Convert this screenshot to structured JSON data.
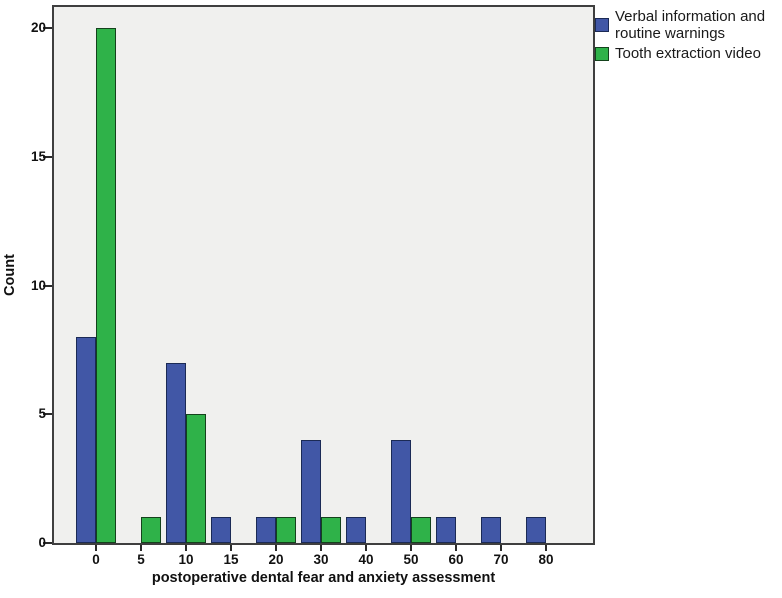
{
  "chart_data": {
    "type": "bar",
    "subtype": "clustered",
    "title": "",
    "xlabel": "postoperative dental fear and anxiety assessment",
    "ylabel": "Count",
    "categories": [
      "0",
      "5",
      "10",
      "15",
      "20",
      "30",
      "40",
      "50",
      "60",
      "70",
      "80"
    ],
    "series": [
      {
        "name": "Verbal information and routine warnings",
        "color": "#4157a6",
        "border_color": "#1b2a55",
        "values": [
          8,
          0,
          7,
          1,
          1,
          4,
          1,
          4,
          1,
          1,
          1
        ]
      },
      {
        "name": "Tooth extraction video",
        "color": "#2fb249",
        "border_color": "#14421c",
        "values": [
          20,
          1,
          5,
          0,
          1,
          1,
          0,
          1,
          0,
          0,
          0
        ]
      }
    ],
    "yticks": [
      0,
      5,
      10,
      15,
      20
    ],
    "ylim": [
      0,
      21
    ],
    "grid": false,
    "legend_position": "top-right",
    "plot_background": "#f0f0ee",
    "frame_color": "#3f3f3f"
  }
}
